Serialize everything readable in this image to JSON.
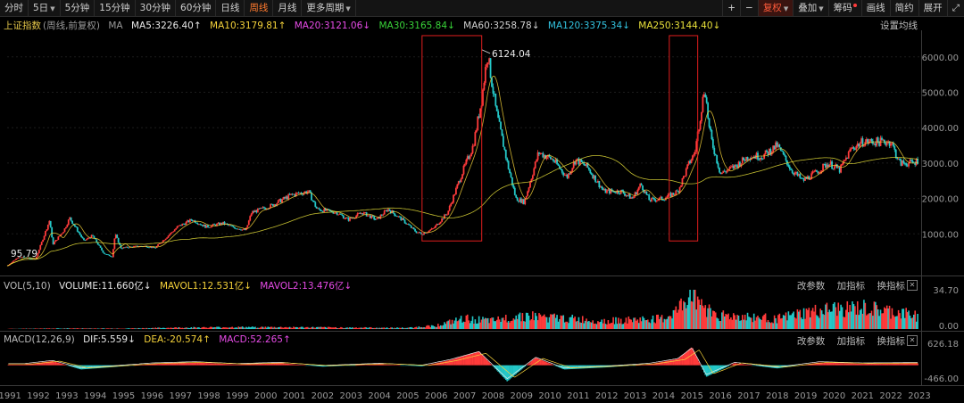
{
  "toolbar": {
    "periods": [
      {
        "label": "分时",
        "active": false,
        "caret": false
      },
      {
        "label": "5日",
        "active": false,
        "caret": true
      },
      {
        "label": "5分钟",
        "active": false,
        "caret": false
      },
      {
        "label": "15分钟",
        "active": false,
        "caret": false
      },
      {
        "label": "30分钟",
        "active": false,
        "caret": false
      },
      {
        "label": "60分钟",
        "active": false,
        "caret": false
      },
      {
        "label": "日线",
        "active": false,
        "caret": false
      },
      {
        "label": "周线",
        "active": true,
        "caret": false
      },
      {
        "label": "月线",
        "active": false,
        "caret": false
      },
      {
        "label": "更多周期",
        "active": false,
        "caret": true
      }
    ],
    "right": {
      "plus": "+",
      "minus": "−",
      "fuquan": "复权",
      "diejia": "叠加",
      "choumа": "筹码",
      "huaxian": "画线",
      "jianyue": "简约",
      "zhankai": "展开",
      "expand_icon": "⤢"
    }
  },
  "main_legend": {
    "index_name": "上证指数",
    "sub": "(周线,前复权)",
    "ma_label": "MA",
    "ma5": "MA5:3226.40",
    "ma10": "MA10:3179.81",
    "ma20": "MA20:3121.06",
    "ma30": "MA30:3165.84",
    "ma60": "MA60:3258.78",
    "ma120": "MA120:3375.34",
    "ma250": "MA250:3144.40",
    "settings": "设置均线"
  },
  "colors": {
    "ma5": "#e8e8e8",
    "ma10": "#f5d23a",
    "ma20": "#e64be6",
    "ma30": "#39d339",
    "ma60": "#cfcfcf",
    "ma120": "#33c3e0",
    "ma250": "#e8e03a",
    "up": "#ff3b3b",
    "down": "#24c8c8",
    "box": "#e01e1e",
    "axis": "#9a9a9a"
  },
  "chart_data": [
    {
      "type": "line",
      "title": "上证指数",
      "yticks": [
        1000,
        2000,
        3000,
        4000,
        5000,
        6000
      ],
      "ytick_labels": [
        "1000.00",
        "2000.00",
        "3000.00",
        "4000.00",
        "5000.00",
        "6000.00"
      ],
      "ylim": [
        0,
        6700
      ],
      "x": [
        1990.9,
        1991.3,
        1991.9,
        1992.4,
        1992.5,
        1992.9,
        1993.1,
        1993.6,
        1993.9,
        1994.3,
        1994.6,
        1994.7,
        1994.9,
        1995.5,
        1995.8,
        1996.1,
        1996.9,
        1997.4,
        1997.9,
        1998.5,
        1998.8,
        1999.3,
        1999.5,
        2000.2,
        2000.9,
        2001.5,
        2001.8,
        2002.5,
        2002.9,
        2003.4,
        2003.9,
        2004.3,
        2004.8,
        2005.3,
        2005.5,
        2005.9,
        2006.4,
        2006.9,
        2007.3,
        2007.6,
        2007.8,
        2008.1,
        2008.5,
        2008.8,
        2009.1,
        2009.6,
        2010.1,
        2010.6,
        2010.9,
        2011.3,
        2011.9,
        2012.5,
        2012.9,
        2013.2,
        2013.5,
        2014.0,
        2014.5,
        2014.9,
        2015.1,
        2015.45,
        2015.6,
        2015.7,
        2016.0,
        2016.5,
        2017.0,
        2017.5,
        2018.0,
        2018.5,
        2018.9,
        2019.3,
        2019.8,
        2020.2,
        2020.6,
        2021.0,
        2021.5,
        2022.0,
        2022.3,
        2022.8,
        2022.95
      ],
      "values": [
        95.79,
        350,
        280,
        1400,
        700,
        1100,
        1450,
        800,
        950,
        450,
        350,
        1000,
        600,
        650,
        650,
        600,
        1200,
        1400,
        1200,
        1300,
        1200,
        1100,
        1600,
        1800,
        2100,
        2200,
        1700,
        1600,
        1400,
        1600,
        1400,
        1700,
        1400,
        1050,
        1000,
        1150,
        1600,
        2700,
        3500,
        4800,
        6124.04,
        4500,
        3000,
        2000,
        1900,
        3300,
        3100,
        2600,
        3100,
        2900,
        2200,
        2200,
        2000,
        2400,
        1950,
        2000,
        2200,
        3000,
        3300,
        5178,
        4000,
        3600,
        2700,
        2900,
        3200,
        3200,
        3500,
        2800,
        2500,
        2700,
        3000,
        2800,
        3400,
        3600,
        3600,
        3600,
        3000,
        3000,
        3089
      ],
      "annotations": [
        {
          "text": "6124.04",
          "x": 2007.8,
          "y": 6124.04
        },
        {
          "text": "95.79",
          "x": 1990.9,
          "y": 95.79
        }
      ],
      "highlight_boxes": [
        {
          "x0": 2005.5,
          "x1": 2007.6
        },
        {
          "x0": 2014.2,
          "x1": 2015.2
        }
      ]
    },
    {
      "type": "bar",
      "title": "VOL(5,10)",
      "legend": [
        "VOLUME:11.660亿",
        "MAVOL1:12.531亿",
        "MAVOL2:13.476亿"
      ],
      "ytick_labels": [
        "34.70",
        "0.00"
      ],
      "ylim": [
        0,
        34.7
      ],
      "x": [
        1991,
        1993,
        1995,
        1997,
        1999,
        2001,
        2003,
        2005,
        2006,
        2007,
        2008,
        2009,
        2010,
        2012,
        2014,
        2014.5,
        2015,
        2015.5,
        2016,
        2018,
        2019,
        2020,
        2021,
        2022,
        2022.9
      ],
      "values": [
        0.2,
        0.5,
        0.4,
        1.2,
        1.6,
        1.5,
        1.2,
        1.0,
        3,
        9,
        7,
        12,
        10,
        7,
        9,
        16,
        34.7,
        18,
        12,
        9,
        14,
        17,
        18,
        15,
        11.66
      ]
    },
    {
      "type": "bar",
      "title": "MACD(12,26,9)",
      "legend": [
        "DIF:5.559",
        "DEA:-20.574",
        "MACD:52.265"
      ],
      "ytick_labels": [
        "626.18",
        "-466.00"
      ],
      "ylim": [
        -466,
        626.18
      ],
      "x": [
        1991.5,
        1992.5,
        1993.5,
        1994.5,
        1996,
        1997.5,
        1999,
        2000.5,
        2002,
        2004,
        2005.5,
        2006.5,
        2007.5,
        2008.5,
        2009.5,
        2010.5,
        2012,
        2013.5,
        2014.5,
        2015.0,
        2015.5,
        2016.5,
        2018,
        2019.5,
        2021,
        2022.5
      ],
      "values": [
        20,
        120,
        -120,
        -60,
        40,
        80,
        20,
        60,
        -40,
        30,
        -30,
        150,
        400,
        -460,
        220,
        -120,
        -60,
        30,
        180,
        520,
        -330,
        60,
        -90,
        80,
        40,
        52
      ]
    }
  ],
  "x_axis": {
    "labels": [
      "1991",
      "1992",
      "1993",
      "1994",
      "1995",
      "1996",
      "1997",
      "1998",
      "1999",
      "2000",
      "2001",
      "2002",
      "2003",
      "2004",
      "2005",
      "2006",
      "2007",
      "2008",
      "2009",
      "2010",
      "2011",
      "2012",
      "2013",
      "2014",
      "2015",
      "2016",
      "2017",
      "2018",
      "2019",
      "2020",
      "2021",
      "2022",
      "2023"
    ]
  },
  "vol_panel": {
    "title": "VOL(5,10)",
    "volume": "VOLUME:11.660亿",
    "mavol1": "MAVOL1:12.531亿",
    "mavol2": "MAVOL2:13.476亿",
    "p1": "改参数",
    "p2": "加指标",
    "p3": "换指标",
    "close": "✕",
    "top": "34.70",
    "bottom": "0.00"
  },
  "macd_panel": {
    "title": "MACD(12,26,9)",
    "dif": "DIF:5.559",
    "dea": "DEA:-20.574",
    "macd": "MACD:52.265",
    "p1": "改参数",
    "p2": "加指标",
    "p3": "换指标",
    "close": "✕",
    "top": "626.18",
    "bottom": "-466.00"
  }
}
